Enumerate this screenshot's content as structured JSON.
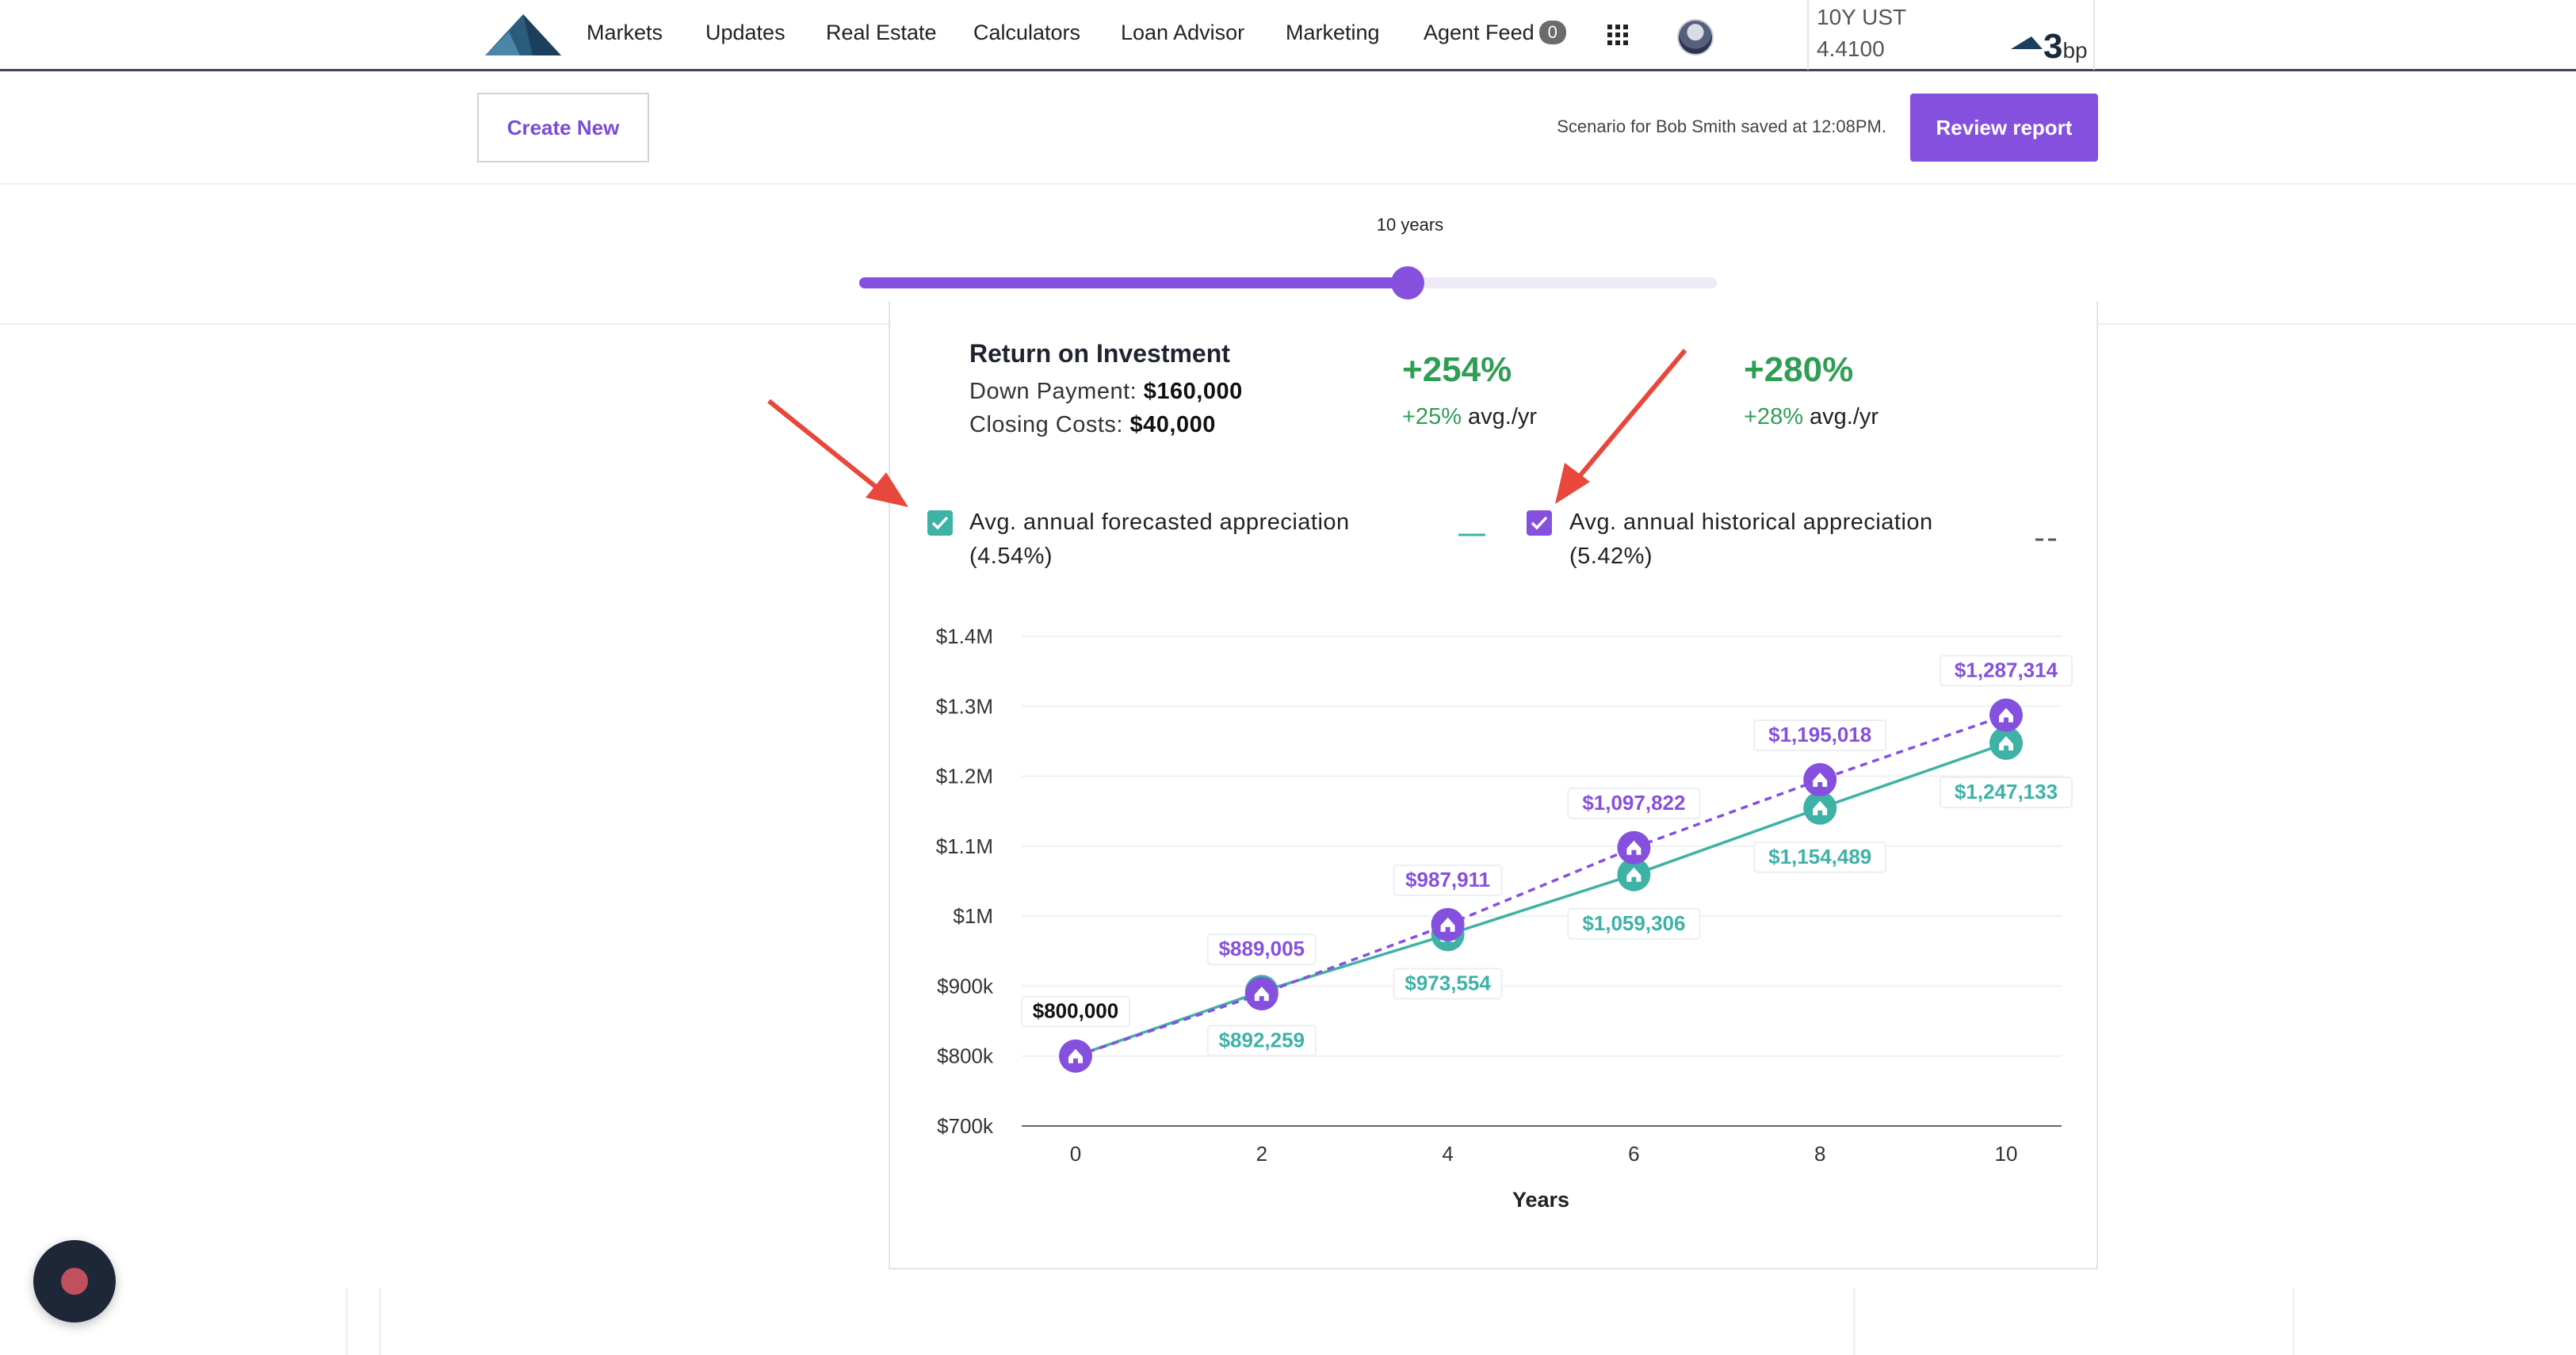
{
  "nav": {
    "items": [
      "Markets",
      "Updates",
      "Real Estate",
      "Calculators",
      "Loan Advisor",
      "Marketing"
    ],
    "agent_feed": "Agent Feed",
    "agent_feed_count": "0",
    "ust_label": "10Y UST",
    "ust_value": "4.4100",
    "ust_change": "3",
    "ust_unit": "bp"
  },
  "actions": {
    "create_label": "Create New",
    "saved_text": "Scenario for Bob Smith saved at 12:08PM.",
    "review_label": "Review report"
  },
  "slider": {
    "label": "10 years",
    "value_fraction": 0.64
  },
  "roi": {
    "title": "Return on Investment",
    "down_payment_label": "Down Payment:",
    "down_payment_value": "$160,000",
    "closing_costs_label": "Closing Costs:",
    "closing_costs_value": "$40,000",
    "forecast_total": "+254%",
    "forecast_avg": "+25%",
    "historical_total": "+280%",
    "historical_avg": "+28%",
    "avg_suffix": "avg./yr"
  },
  "legend": {
    "forecast_label_1": "Avg. annual forecasted appreciation",
    "forecast_label_2": "(4.54%)",
    "historical_label_1": "Avg. annual historical appreciation",
    "historical_label_2": "(5.42%)"
  },
  "colors": {
    "forecast": "#3eb2a6",
    "historical": "#8650de",
    "accent": "#8650de",
    "positive": "#2f9e55",
    "arrow": "#e8483b"
  },
  "chart_data": {
    "type": "line",
    "x": [
      0,
      2,
      4,
      6,
      8,
      10
    ],
    "xlabel": "Years",
    "ylabel": "",
    "ylim": [
      700000,
      1400000
    ],
    "yticks": [
      "$700k",
      "$800k",
      "$900k",
      "$1M",
      "$1.1M",
      "$1.2M",
      "$1.3M",
      "$1.4M"
    ],
    "series": [
      {
        "name": "Avg. annual forecasted appreciation (4.54%)",
        "style": "solid",
        "values": [
          800000,
          892259,
          973554,
          1059306,
          1154489,
          1247133
        ],
        "labels": [
          "$800,000",
          "$892,259",
          "$973,554",
          "$1,059,306",
          "$1,154,489",
          "$1,247,133"
        ]
      },
      {
        "name": "Avg. annual historical appreciation (5.42%)",
        "style": "dashed",
        "values": [
          800000,
          889005,
          987911,
          1097822,
          1195018,
          1287314
        ],
        "labels": [
          "$800,000",
          "$889,005",
          "$987,911",
          "$1,097,822",
          "$1,195,018",
          "$1,287,314"
        ]
      }
    ],
    "grid": true
  }
}
